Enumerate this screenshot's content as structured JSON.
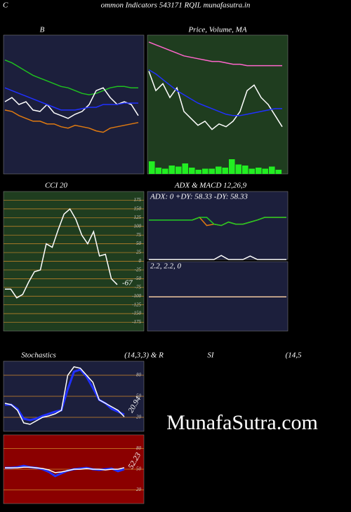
{
  "header": {
    "prefix": "C",
    "title": "ommon Indicators 543171 RQIL munafasutra.in"
  },
  "watermark": "MunafaSutra.com",
  "chart_data": [
    {
      "type": "line",
      "title": "B",
      "ylim": [
        0,
        100
      ],
      "series": [
        {
          "color": "#1fbf1f",
          "values": [
            82,
            80,
            77,
            74,
            71,
            69,
            67,
            65,
            63,
            62,
            60,
            58,
            57,
            58,
            60,
            62,
            63,
            63,
            62,
            62
          ]
        },
        {
          "color": "#ffffff",
          "values": [
            52,
            55,
            50,
            52,
            46,
            45,
            50,
            44,
            42,
            40,
            43,
            45,
            50,
            60,
            62,
            55,
            50,
            52,
            50,
            42
          ]
        },
        {
          "color": "#2030ff",
          "values": [
            62,
            60,
            58,
            56,
            54,
            52,
            50,
            48,
            46,
            46,
            46,
            47,
            48,
            48,
            50,
            50,
            50,
            51,
            51,
            51
          ]
        },
        {
          "color": "#e07a10",
          "values": [
            46,
            45,
            42,
            40,
            38,
            38,
            36,
            36,
            34,
            33,
            35,
            34,
            33,
            31,
            30,
            33,
            34,
            35,
            36,
            37
          ]
        }
      ]
    },
    {
      "type": "line",
      "title": "Price,  Volume,  MA",
      "ylim": [
        0,
        100
      ],
      "volume": {
        "color": "#22ee22",
        "values": [
          12,
          6,
          5,
          8,
          7,
          10,
          6,
          4,
          5,
          5,
          7,
          6,
          14,
          9,
          8,
          5,
          6,
          5,
          7,
          4
        ]
      },
      "series": [
        {
          "color": "#ff66cc",
          "values": [
            95,
            93,
            91,
            89,
            87,
            85,
            84,
            83,
            82,
            81,
            81,
            80,
            79,
            79,
            78,
            78,
            78,
            78,
            78,
            78
          ]
        },
        {
          "color": "#ffffff",
          "values": [
            74,
            60,
            65,
            55,
            62,
            45,
            40,
            35,
            38,
            32,
            36,
            34,
            38,
            45,
            60,
            64,
            55,
            50,
            42,
            34
          ]
        },
        {
          "color": "#2030ff",
          "values": [
            75,
            72,
            68,
            64,
            60,
            57,
            54,
            51,
            49,
            47,
            45,
            43,
            42,
            42,
            43,
            44,
            45,
            46,
            47,
            47
          ]
        }
      ]
    },
    {
      "type": "line",
      "title": "CCI 20",
      "ylim": [
        -200,
        200
      ],
      "yticks": [
        175,
        150,
        125,
        100,
        75,
        50,
        25,
        0,
        -25,
        -50,
        -75,
        -100,
        -125,
        -150,
        -175
      ],
      "series": [
        {
          "color": "#ffffff",
          "values": [
            -80,
            -80,
            -105,
            -95,
            -60,
            -30,
            -25,
            50,
            40,
            90,
            135,
            150,
            120,
            75,
            50,
            85,
            15,
            20,
            -50,
            -67
          ]
        }
      ]
    },
    {
      "type": "line",
      "title": "ADX  & MACD 12,26,9",
      "subtitle": "ADX: 0  +DY: 58.33 -DY: 58.33",
      "ylim": [
        0,
        100
      ],
      "series": [
        {
          "color": "#e07a10",
          "values": [
            58,
            58,
            58,
            58,
            58,
            58,
            58,
            62,
            50,
            52,
            50,
            55,
            52,
            52,
            55,
            58,
            62,
            62,
            62,
            62
          ]
        },
        {
          "color": "#22cc22",
          "values": [
            58,
            58,
            58,
            58,
            58,
            58,
            58,
            62,
            62,
            52,
            50,
            55,
            52,
            52,
            55,
            58,
            62,
            62,
            62,
            62
          ]
        },
        {
          "color": "#ffffff",
          "values": [
            0,
            0,
            0,
            0,
            0,
            0,
            0,
            0,
            0,
            0,
            6,
            0,
            0,
            0,
            5,
            0,
            0,
            0,
            0,
            0
          ]
        }
      ]
    },
    {
      "type": "line",
      "subtitle": "2.2,  2.2,  0",
      "ylim": [
        -20,
        25
      ],
      "series": [
        {
          "color": "#f0c8a0",
          "values": [
            2.2,
            2.2,
            2.2,
            2.2,
            2.2,
            2.2,
            2.2,
            2.2,
            2.2,
            2.2,
            2.2,
            2.2,
            2.2,
            2.2,
            2.2,
            2.2,
            2.2,
            2.2,
            2.2,
            2.2
          ]
        }
      ]
    },
    {
      "type": "line",
      "title": "Stochastics",
      "title2": "(14,3,3) & R",
      "ylim": [
        0,
        100
      ],
      "yticks": [
        80,
        50,
        20
      ],
      "series": [
        {
          "color": "#2030ff",
          "values": [
            38,
            38,
            32,
            18,
            16,
            18,
            22,
            25,
            28,
            30,
            60,
            85,
            88,
            78,
            62,
            45,
            40,
            32,
            28,
            24
          ]
        },
        {
          "color": "#ffffff",
          "values": [
            40,
            38,
            30,
            12,
            10,
            15,
            20,
            22,
            25,
            30,
            80,
            92,
            90,
            80,
            70,
            45,
            40,
            35,
            30,
            20.94
          ]
        }
      ]
    },
    {
      "type": "line",
      "title": "SI",
      "title2": "(14,5",
      "ylim": [
        0,
        100
      ],
      "yticks": [
        80,
        50,
        20
      ],
      "series": [
        {
          "color": "#2030ff",
          "values": [
            52,
            52,
            53,
            55,
            53,
            52,
            50,
            46,
            40,
            44,
            48,
            50,
            51,
            52,
            50,
            49,
            50,
            51,
            47,
            50
          ]
        },
        {
          "color": "#ffffff",
          "values": [
            52,
            52,
            52,
            53,
            53,
            52,
            51,
            49,
            45,
            46,
            48,
            50,
            50,
            51,
            50,
            50,
            49,
            50,
            50,
            52.23
          ]
        }
      ]
    }
  ]
}
